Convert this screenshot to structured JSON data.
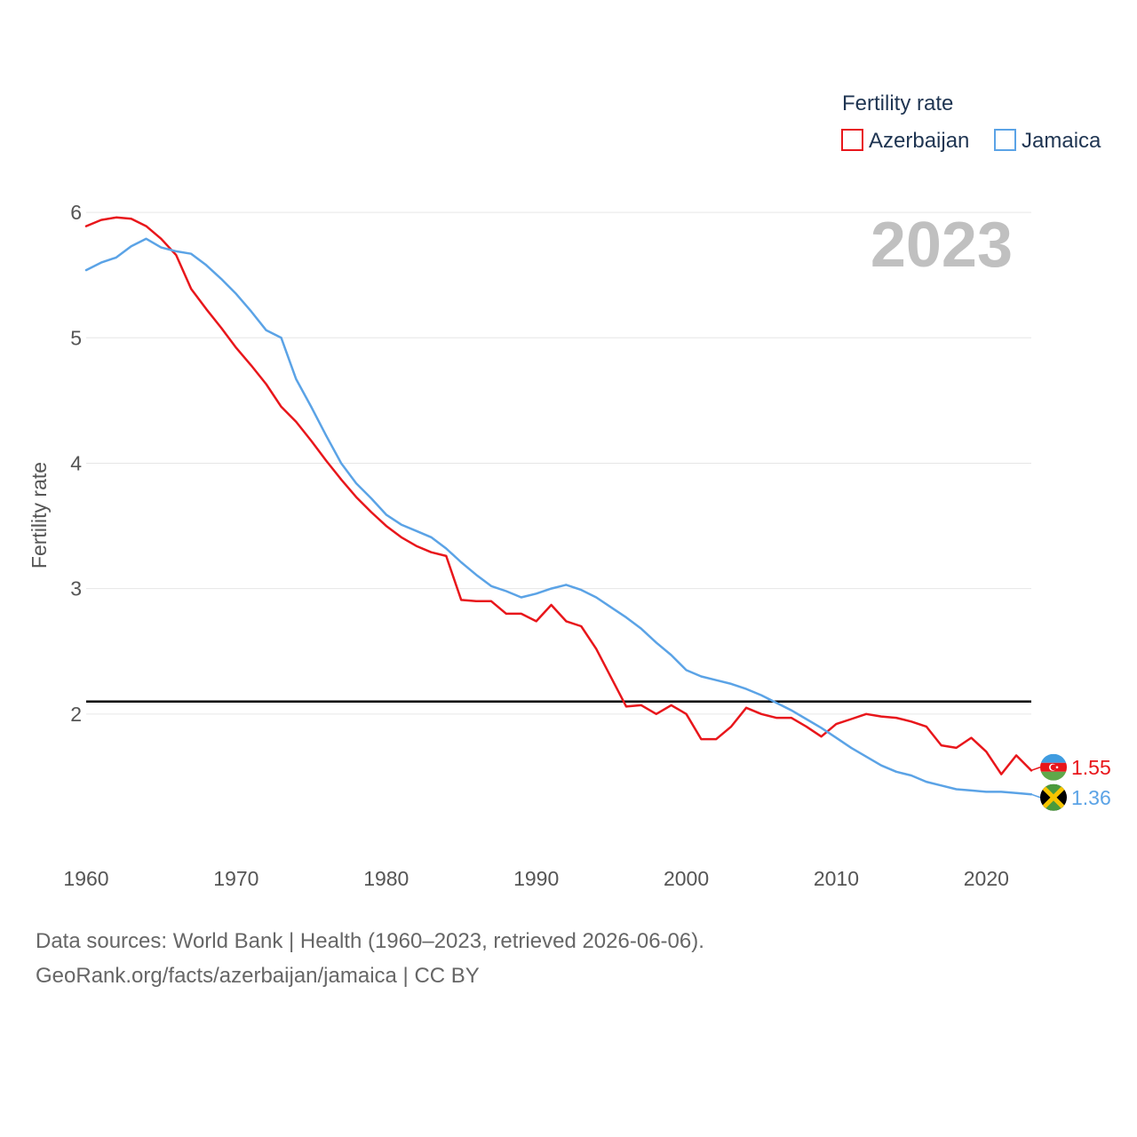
{
  "chart_data": {
    "type": "line",
    "year_label": "2023",
    "ylabel": "Fertility rate",
    "xlabel": "",
    "xlim": [
      1960,
      2023
    ],
    "ylim": [
      1.0,
      6.1
    ],
    "x_ticks": [
      1960,
      1970,
      1980,
      1990,
      2000,
      2010,
      2020
    ],
    "y_ticks": [
      2,
      3,
      4,
      5,
      6
    ],
    "reference_line": 2.1,
    "legend": {
      "title": "Fertility rate",
      "position": "top-right"
    },
    "x": [
      1960,
      1961,
      1962,
      1963,
      1964,
      1965,
      1966,
      1967,
      1968,
      1969,
      1970,
      1971,
      1972,
      1973,
      1974,
      1975,
      1976,
      1977,
      1978,
      1979,
      1980,
      1981,
      1982,
      1983,
      1984,
      1985,
      1986,
      1987,
      1988,
      1989,
      1990,
      1991,
      1992,
      1993,
      1994,
      1995,
      1996,
      1997,
      1998,
      1999,
      2000,
      2001,
      2002,
      2003,
      2004,
      2005,
      2006,
      2007,
      2008,
      2009,
      2010,
      2011,
      2012,
      2013,
      2014,
      2015,
      2016,
      2017,
      2018,
      2019,
      2020,
      2021,
      2022,
      2023
    ],
    "series": [
      {
        "name": "Azerbaijan",
        "color": "#e8161b",
        "end_label": "1.55",
        "flag": "azerbaijan-flag-icon",
        "values": [
          5.89,
          5.94,
          5.96,
          5.95,
          5.89,
          5.79,
          5.66,
          5.39,
          5.23,
          5.08,
          4.92,
          4.78,
          4.63,
          4.45,
          4.33,
          4.18,
          4.02,
          3.87,
          3.73,
          3.61,
          3.5,
          3.41,
          3.34,
          3.29,
          3.26,
          2.91,
          2.9,
          2.9,
          2.8,
          2.8,
          2.74,
          2.87,
          2.74,
          2.7,
          2.52,
          2.29,
          2.06,
          2.07,
          2.0,
          2.07,
          2.0,
          1.8,
          1.8,
          1.9,
          2.05,
          2.0,
          1.97,
          1.97,
          1.9,
          1.82,
          1.92,
          1.96,
          2.0,
          1.98,
          1.97,
          1.94,
          1.9,
          1.75,
          1.73,
          1.81,
          1.7,
          1.52,
          1.67,
          1.55
        ]
      },
      {
        "name": "Jamaica",
        "color": "#5ba3e6",
        "end_label": "1.36",
        "flag": "jamaica-flag-icon",
        "values": [
          5.54,
          5.6,
          5.64,
          5.73,
          5.79,
          5.72,
          5.69,
          5.67,
          5.58,
          5.47,
          5.35,
          5.21,
          5.06,
          5.0,
          4.67,
          4.45,
          4.22,
          4.0,
          3.84,
          3.72,
          3.59,
          3.51,
          3.46,
          3.41,
          3.32,
          3.21,
          3.11,
          3.02,
          2.98,
          2.93,
          2.96,
          3.0,
          3.03,
          2.99,
          2.93,
          2.85,
          2.77,
          2.68,
          2.57,
          2.47,
          2.35,
          2.3,
          2.27,
          2.24,
          2.2,
          2.15,
          2.09,
          2.03,
          1.96,
          1.89,
          1.81,
          1.73,
          1.66,
          1.59,
          1.54,
          1.51,
          1.46,
          1.43,
          1.4,
          1.39,
          1.38,
          1.38,
          1.37,
          1.36
        ]
      }
    ]
  },
  "footer": {
    "line1": "Data sources: World Bank | Health (1960–2023, retrieved 2026-06-06).",
    "line2": "GeoRank.org/facts/azerbaijan/jamaica | CC BY"
  }
}
